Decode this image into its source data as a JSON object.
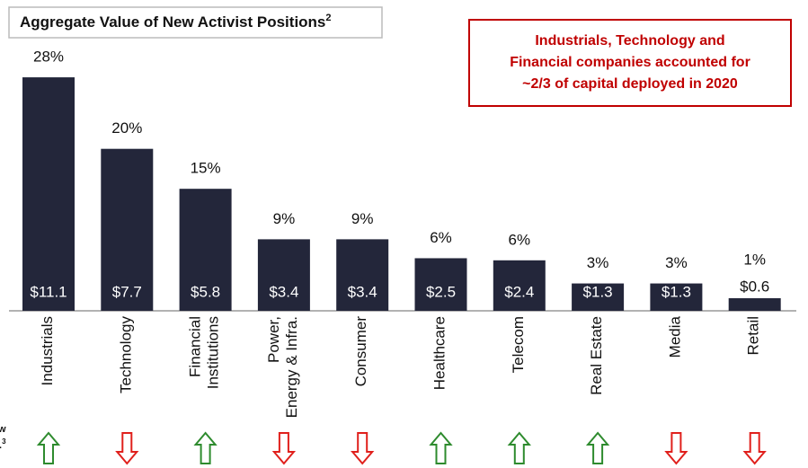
{
  "chart_data": {
    "type": "bar",
    "title": "Aggregate Value of New Activist Positions",
    "title_sup": "2",
    "callout": [
      "Industrials, Technology and",
      "Financial companies accounted for",
      "~2/3 of capital deployed in 2020"
    ],
    "categories": [
      "Industrials",
      "Technology",
      "Financial\nInstitutions",
      "Power,\nEnergy & Infra.",
      "Consumer",
      "Healthcare",
      "Telecom",
      "Real Estate",
      "Media",
      "Retail"
    ],
    "values": [
      11.1,
      7.7,
      5.8,
      3.4,
      3.4,
      2.5,
      2.4,
      1.3,
      1.3,
      0.6
    ],
    "value_labels": [
      "$11.1",
      "$7.7",
      "$5.8",
      "$3.4",
      "$3.4",
      "$2.5",
      "$2.4",
      "$1.3",
      "$1.3",
      "$0.6"
    ],
    "shares": [
      28,
      20,
      15,
      9,
      9,
      6,
      6,
      3,
      3,
      1
    ],
    "share_labels": [
      "28%",
      "20%",
      "15%",
      "9%",
      "9%",
      "6%",
      "6%",
      "3%",
      "3%",
      "1%"
    ],
    "trend": [
      "up",
      "down",
      "up",
      "down",
      "down",
      "up",
      "up",
      "up",
      "down",
      "down"
    ],
    "trend_colors": {
      "up": "#2e8b2e",
      "down": "#e0201c"
    },
    "color": "#23263a",
    "ylim": [
      0,
      12
    ],
    "yticks": [],
    "side_note": [
      "w",
      ".",
      "3"
    ]
  }
}
